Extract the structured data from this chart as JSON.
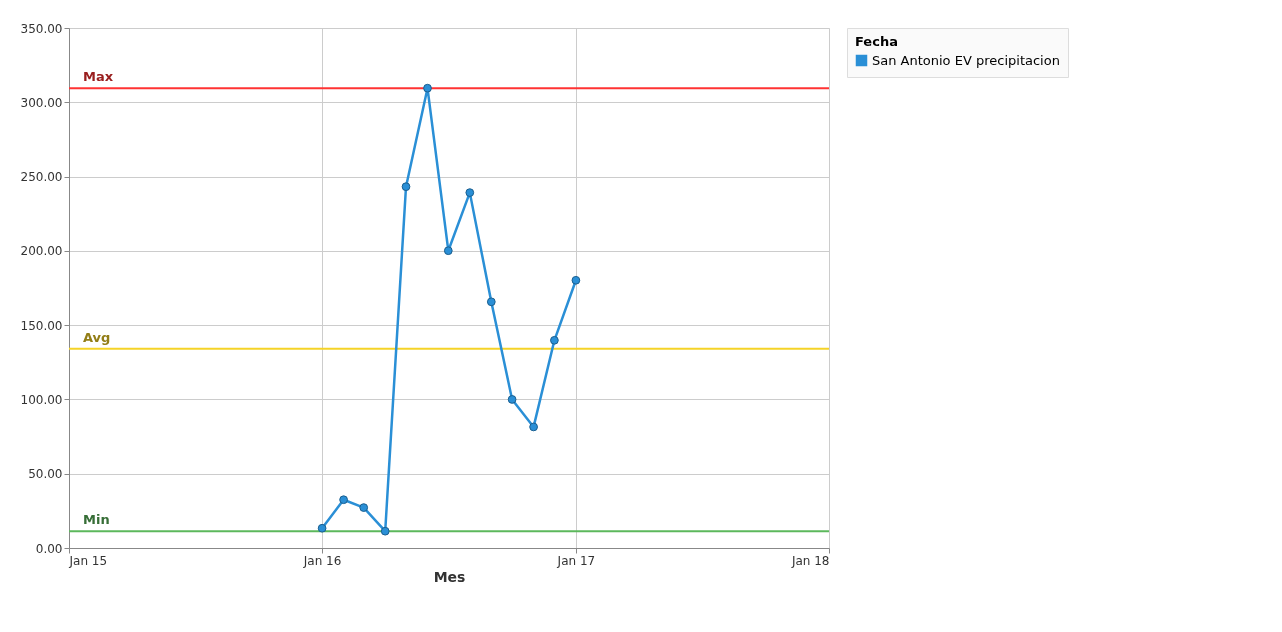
{
  "chart_data": {
    "type": "line",
    "xlabel": "Mes",
    "legend_title": "Fecha",
    "x": [
      "2016-01",
      "2016-02",
      "2016-03",
      "2016-04",
      "2016-05",
      "2016-06",
      "2016-07",
      "2016-08",
      "2016-09",
      "2016-10",
      "2016-11",
      "2016-12",
      "2017-01"
    ],
    "series": [
      {
        "name": "San Antonio EV precipitacion",
        "color": "#2a8fd6",
        "values": [
          13.3,
          32.5,
          27.2,
          11.3,
          243.2,
          309.5,
          200.1,
          239.2,
          165.7,
          100.0,
          81.5,
          139.8,
          180.2
        ]
      }
    ],
    "xlim": [
      "2015-01",
      "2018-01"
    ],
    "xticks": [
      {
        "value": "2015-01",
        "label": "Jan 15"
      },
      {
        "value": "2016-01",
        "label": "Jan 16"
      },
      {
        "value": "2017-01",
        "label": "Jan 17"
      },
      {
        "value": "2018-01",
        "label": "Jan 18"
      }
    ],
    "ylim": [
      0,
      350
    ],
    "yticks": [
      {
        "value": 0,
        "label": "0.00"
      },
      {
        "value": 50,
        "label": "50.00"
      },
      {
        "value": 100,
        "label": "100.00"
      },
      {
        "value": 150,
        "label": "150.00"
      },
      {
        "value": 200,
        "label": "200.00"
      },
      {
        "value": 250,
        "label": "250.00"
      },
      {
        "value": 300,
        "label": "300.00"
      },
      {
        "value": 350,
        "label": "350.00"
      }
    ],
    "ref_lines": [
      {
        "axis": "y",
        "value": 309.5,
        "label": "Max",
        "color": "#ff3333"
      },
      {
        "axis": "y",
        "value": 134.1,
        "label": "Avg",
        "color": "#f5d327"
      },
      {
        "axis": "y",
        "value": 11.3,
        "label": "Min",
        "color": "#5cb85c"
      }
    ],
    "grid": true,
    "legend": "right",
    "marker": "circle",
    "line_style": "solid"
  }
}
